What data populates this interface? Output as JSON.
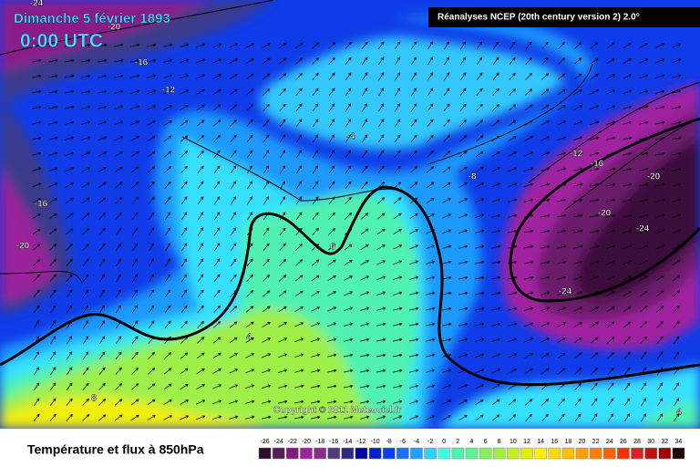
{
  "header": {
    "date": "Dimanche 5 février 1893",
    "time": "0:00 UTC",
    "source": "Réanalyses NCEP (20th century version 2) 2.0°"
  },
  "copyright": "Copyright © 2011 Meteociel.fr",
  "contour_labels": [
    -24,
    -20,
    -16,
    -12,
    -16,
    -20,
    -4,
    0,
    4,
    8,
    -8,
    -12,
    -16,
    -20,
    -20,
    -24,
    -24,
    4
  ],
  "legend": {
    "title": "Température et flux à 850hPa",
    "ticks": [
      -26,
      -24,
      -22,
      -20,
      -18,
      -16,
      -14,
      -12,
      -10,
      -8,
      -6,
      -4,
      -2,
      0,
      2,
      4,
      6,
      8,
      10,
      12,
      14,
      16,
      18,
      20,
      22,
      24,
      26,
      28,
      30,
      32,
      34
    ],
    "colors": [
      "#2d0f2d",
      "#5a1a5a",
      "#801c80",
      "#a020a0",
      "#8a2d8a",
      "#503a80",
      "#2a2a80",
      "#0000a0",
      "#0020d0",
      "#0040ff",
      "#1a70ff",
      "#20a0ff",
      "#30d0ff",
      "#40ffe0",
      "#50f0b0",
      "#60f090",
      "#80f060",
      "#a0f040",
      "#c0f020",
      "#e0f000",
      "#fff000",
      "#ffd800",
      "#ffc000",
      "#ffa000",
      "#ff8000",
      "#ff6000",
      "#ff3000",
      "#e02020",
      "#c01010",
      "#a00000",
      "#200000"
    ]
  }
}
